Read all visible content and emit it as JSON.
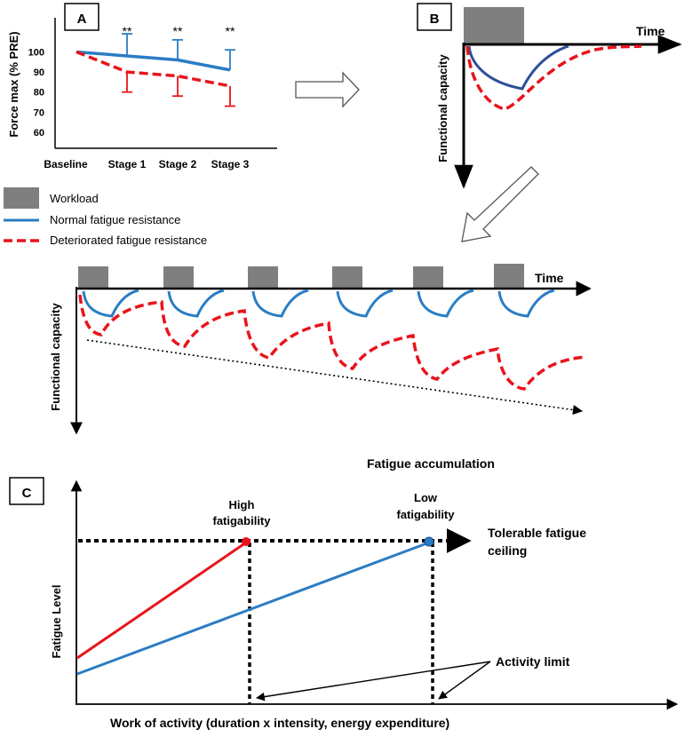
{
  "colors": {
    "normal": "#2a7dc4",
    "normal_dark": "#2e4f99",
    "deteriorated": "#e8141c",
    "workload": "#7f7f7f",
    "axis": "#000000"
  },
  "panel_a": {
    "letter": "A",
    "ylabel": "Force max (% PRE)",
    "significance": [
      "**",
      "**",
      "**"
    ],
    "chart_data": {
      "type": "line",
      "categories": [
        "Baseline",
        "Stage 1",
        "Stage 2",
        "Stage 3"
      ],
      "yticks": [
        60,
        70,
        80,
        90,
        100
      ],
      "ylim": [
        52,
        117
      ],
      "series": [
        {
          "name": "Normal fatigue resistance",
          "values": [
            100,
            98,
            96,
            91
          ],
          "err_up": [
            0,
            11,
            10,
            10
          ]
        },
        {
          "name": "Deteriorated fatigue resistance",
          "values": [
            100,
            90,
            88,
            83
          ],
          "err_down": [
            0,
            10,
            10,
            10
          ]
        }
      ]
    }
  },
  "panel_b": {
    "letter": "B",
    "xlabel": "Time",
    "ylabel": "Functional capacity"
  },
  "legend": {
    "workload": "Workload",
    "normal": "Normal fatigue resistance",
    "deteriorated": "Deteriorated fatigue resistance"
  },
  "panel_mid": {
    "xlabel": "Time",
    "ylabel": "Functional capacity",
    "caption": "Fatigue accumulation",
    "bouts": 6
  },
  "panel_c": {
    "letter": "C",
    "ylabel": "Fatigue Level",
    "xlabel": "Work of activity (duration x intensity, energy expenditure)",
    "high_label": [
      "High",
      "fatigability"
    ],
    "low_label": [
      "Low",
      "fatigability"
    ],
    "ceiling_label": [
      "Tolerable fatigue",
      "ceiling"
    ],
    "limit_label": "Activity limit"
  }
}
